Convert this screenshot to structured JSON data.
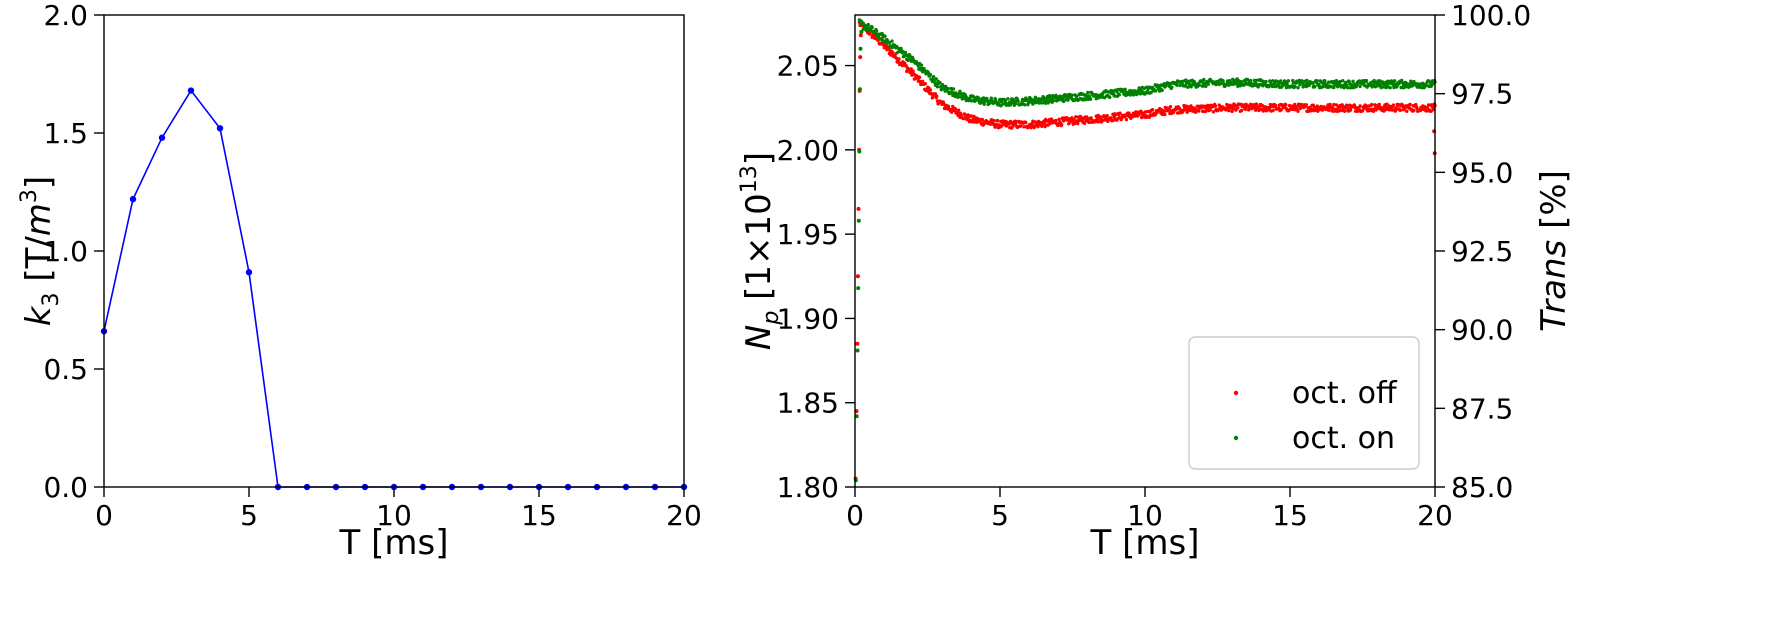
{
  "chart_data": [
    {
      "type": "line",
      "xlabel": "T [ms]",
      "ylabel_main": "k",
      "ylabel_sub": "3",
      "ylabel_unit_pre": " [T/",
      "ylabel_unit_var": "m",
      "ylabel_unit_sup": "3",
      "ylabel_unit_post": "]",
      "xlim": [
        0,
        20
      ],
      "ylim": [
        0,
        2.0
      ],
      "xticks": [
        "0",
        "5",
        "10",
        "15",
        "20"
      ],
      "xtick_values": [
        0,
        5,
        10,
        15,
        20
      ],
      "yticks": [
        "0.0",
        "0.5",
        "1.0",
        "1.5",
        "2.0"
      ],
      "ytick_values": [
        0,
        0.5,
        1.0,
        1.5,
        2.0
      ],
      "color": "#0000ff",
      "grid": false,
      "series": [
        {
          "x": [
            0,
            1,
            2,
            3,
            4,
            5,
            6,
            7,
            8,
            9,
            10,
            11,
            12,
            13,
            14,
            15,
            16,
            17,
            18,
            19,
            20
          ],
          "values": [
            0.66,
            1.22,
            1.48,
            1.68,
            1.52,
            0.91,
            0,
            0,
            0,
            0,
            0,
            0,
            0,
            0,
            0,
            0,
            0,
            0,
            0,
            0,
            0
          ]
        }
      ]
    },
    {
      "type": "scatter",
      "xlabel": "T [ms]",
      "ylabel_left_main": "N",
      "ylabel_left_sub": "p",
      "ylabel_left_unit_pre": " [1×10",
      "ylabel_left_unit_sup": "13",
      "ylabel_left_unit_post": "]",
      "ylabel_right_main": "Trans",
      "ylabel_right_unit": " [%]",
      "xlim": [
        0,
        20
      ],
      "ylim_left": [
        1.8,
        2.08
      ],
      "ylim_right": [
        85.0,
        100.0
      ],
      "xticks": [
        "0",
        "5",
        "10",
        "15",
        "20"
      ],
      "xtick_values": [
        0,
        5,
        10,
        15,
        20
      ],
      "yticks_left": [
        "1.80",
        "1.85",
        "1.90",
        "1.95",
        "2.00",
        "2.05"
      ],
      "ytick_left_values": [
        1.8,
        1.85,
        1.9,
        1.95,
        2.0,
        2.05
      ],
      "yticks_right": [
        "85.0",
        "87.5",
        "90.0",
        "92.5",
        "95.0",
        "97.5",
        "100.0"
      ],
      "ytick_right_values": [
        85.0,
        87.5,
        90.0,
        92.5,
        95.0,
        97.5,
        100.0
      ],
      "grid": false,
      "legend_position": "bottom-right",
      "series": [
        {
          "name": "oct. off",
          "color": "#ff0000",
          "trend_x": [
            0.15,
            0.5,
            1.0,
            2.0,
            3.0,
            4.0,
            5.0,
            6.0,
            8.0,
            10.0,
            11.0,
            13.0,
            15.0,
            17.0,
            20.0
          ],
          "trend_y": [
            2.075,
            2.07,
            2.062,
            2.045,
            2.027,
            2.018,
            2.015,
            2.015,
            2.018,
            2.021,
            2.024,
            2.025,
            2.025,
            2.025,
            2.025
          ],
          "spread": 0.0022,
          "startup_x": [
            0.02,
            0.05,
            0.08,
            0.1,
            0.12,
            0.14,
            0.16,
            0.18,
            0.2,
            0.24
          ],
          "startup_y": [
            1.805,
            1.845,
            1.885,
            1.925,
            1.965,
            2.0,
            2.035,
            2.055,
            2.068,
            2.074
          ],
          "end_x": [
            19.97,
            19.99
          ],
          "end_y": [
            2.011,
            1.998
          ],
          "count": 900
        },
        {
          "name": "oct. on",
          "color": "#008000",
          "trend_x": [
            0.15,
            0.5,
            1.0,
            2.0,
            3.0,
            4.0,
            5.0,
            6.0,
            8.0,
            10.0,
            11.0,
            13.0,
            15.0,
            17.0,
            20.0
          ],
          "trend_y": [
            2.075,
            2.072,
            2.066,
            2.053,
            2.037,
            2.03,
            2.028,
            2.029,
            2.032,
            2.035,
            2.039,
            2.04,
            2.039,
            2.039,
            2.039
          ],
          "spread": 0.0022,
          "startup_x": [
            0.03,
            0.06,
            0.09,
            0.11,
            0.13,
            0.15,
            0.17,
            0.19,
            0.22
          ],
          "startup_y": [
            1.804,
            1.842,
            1.881,
            1.918,
            1.958,
            1.999,
            2.036,
            2.06,
            2.07
          ],
          "end_x": [],
          "end_y": [],
          "count": 900
        }
      ]
    }
  ]
}
